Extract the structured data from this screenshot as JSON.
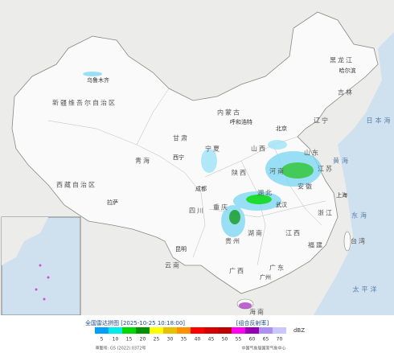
{
  "legend": {
    "title": "全国雷达拼图 [2025-10-25 10:18:00]",
    "product": "[组合反射率]",
    "unit": "dBZ",
    "scale": [
      {
        "value": 5,
        "color": "#01a0f6"
      },
      {
        "value": 10,
        "color": "#00ecec"
      },
      {
        "value": 15,
        "color": "#00d800"
      },
      {
        "value": 20,
        "color": "#019000"
      },
      {
        "value": 25,
        "color": "#ffff00"
      },
      {
        "value": 30,
        "color": "#e7c000"
      },
      {
        "value": 35,
        "color": "#ff9000"
      },
      {
        "value": 40,
        "color": "#ff0000"
      },
      {
        "value": 45,
        "color": "#d60000"
      },
      {
        "value": 50,
        "color": "#c00000"
      },
      {
        "value": 55,
        "color": "#ff00f0"
      },
      {
        "value": 60,
        "color": "#9600b4"
      },
      {
        "value": 65,
        "color": "#ad90f0"
      },
      {
        "value": 70,
        "color": "#c8c8ff"
      }
    ]
  },
  "footer": {
    "approval": "审图号: GS (2022) 0372号",
    "agency": "中国气象局国家气象中心"
  },
  "labels": [
    "新疆维吾尔自治区",
    "西藏自治区",
    "青海",
    "甘肃",
    "内蒙古",
    "黑龙江",
    "吉林",
    "辽宁",
    "四川",
    "云南",
    "贵州",
    "广西",
    "广东",
    "湖南",
    "湖北",
    "河南",
    "山东",
    "山西",
    "陕西",
    "宁夏",
    "江苏",
    "安徽",
    "浙江",
    "江西",
    "福建",
    "台湾",
    "海南",
    "重庆",
    "乌鲁木齐",
    "拉萨",
    "西宁",
    "成都",
    "昆明",
    "北京",
    "上海",
    "武汉",
    "广州",
    "哈尔滨",
    "呼和浩特",
    "东海",
    "黄海",
    "日本海",
    "太平洋"
  ]
}
